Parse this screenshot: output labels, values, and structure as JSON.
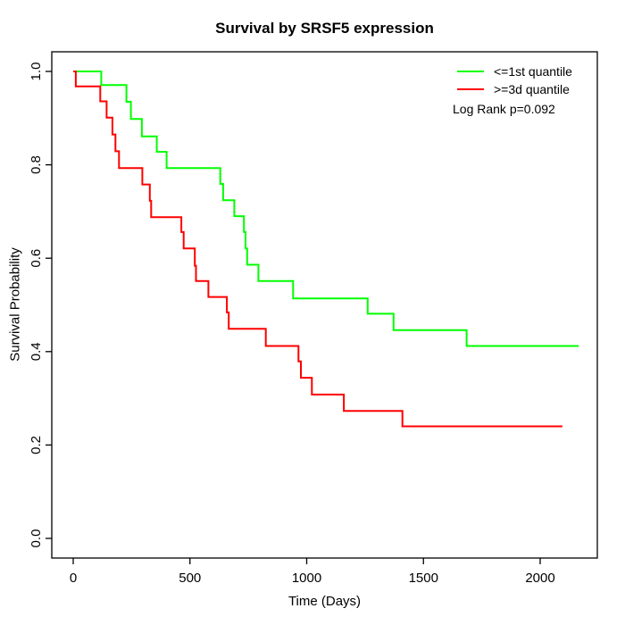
{
  "chart_data": {
    "type": "line",
    "subtype": "kaplan_meier_step",
    "title": "Survival by SRSF5 expression",
    "xlabel": "Time (Days)",
    "ylabel": "Survival Probability",
    "grid": false,
    "legend_position": "top-right",
    "annotation": "Log Rank p=0.092",
    "x_ticks": {
      "values": [
        0,
        500,
        1000,
        1500,
        2000
      ],
      "labels": [
        "0",
        "500",
        "1000",
        "1500",
        "2000"
      ]
    },
    "y_ticks": {
      "values": [
        0,
        0.2,
        0.4,
        0.6,
        0.8,
        1.0
      ],
      "labels": [
        "0.0",
        "0.2",
        "0.4",
        "0.6",
        "0.8",
        "1.0"
      ]
    },
    "xlim": [
      0,
      2200
    ],
    "ylim": [
      0,
      1
    ],
    "series": [
      {
        "name": "<=1st quantile",
        "color": "#00ff00",
        "steps": [
          [
            0,
            1.0
          ],
          [
            120,
            0.971
          ],
          [
            228,
            0.935
          ],
          [
            247,
            0.898
          ],
          [
            294,
            0.861
          ],
          [
            358,
            0.828
          ],
          [
            400,
            0.793
          ],
          [
            630,
            0.759
          ],
          [
            642,
            0.724
          ],
          [
            690,
            0.69
          ],
          [
            731,
            0.656
          ],
          [
            738,
            0.621
          ],
          [
            745,
            0.586
          ],
          [
            793,
            0.551
          ],
          [
            942,
            0.514
          ],
          [
            1261,
            0.481
          ],
          [
            1372,
            0.446
          ],
          [
            1685,
            0.412
          ],
          [
            2165,
            0.412
          ]
        ]
      },
      {
        "name": ">=3d quantile",
        "color": "#ff0000",
        "steps": [
          [
            0,
            1.0
          ],
          [
            11,
            0.968
          ],
          [
            116,
            0.936
          ],
          [
            143,
            0.901
          ],
          [
            168,
            0.865
          ],
          [
            181,
            0.829
          ],
          [
            196,
            0.793
          ],
          [
            296,
            0.758
          ],
          [
            328,
            0.723
          ],
          [
            334,
            0.688
          ],
          [
            463,
            0.656
          ],
          [
            473,
            0.621
          ],
          [
            521,
            0.584
          ],
          [
            526,
            0.551
          ],
          [
            579,
            0.517
          ],
          [
            658,
            0.484
          ],
          [
            666,
            0.449
          ],
          [
            825,
            0.412
          ],
          [
            965,
            0.379
          ],
          [
            975,
            0.344
          ],
          [
            1022,
            0.308
          ],
          [
            1159,
            0.273
          ],
          [
            1410,
            0.24
          ],
          [
            2095,
            0.24
          ]
        ]
      }
    ]
  }
}
